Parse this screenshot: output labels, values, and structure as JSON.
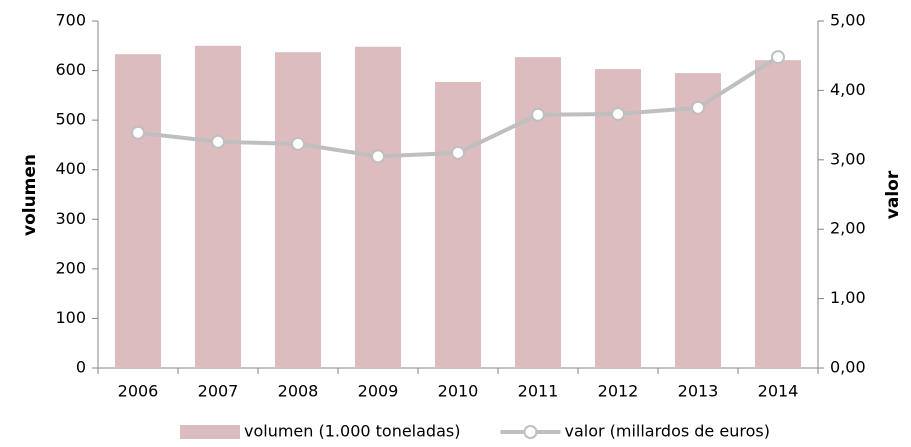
{
  "chart_data": {
    "type": "combo",
    "categories": [
      "2006",
      "2007",
      "2008",
      "2009",
      "2010",
      "2011",
      "2012",
      "2013",
      "2014"
    ],
    "series": [
      {
        "name": "volumen (1.000 toneladas)",
        "type": "bar",
        "color": "#dcbcbf",
        "values": [
          633,
          650,
          637,
          648,
          577,
          627,
          603,
          595,
          621
        ]
      },
      {
        "name": "valor (millardos de euros)",
        "type": "line",
        "axis": "y2",
        "color": "#bfbfbf",
        "values": [
          3.39,
          3.26,
          3.23,
          3.05,
          3.1,
          3.65,
          3.66,
          3.75,
          4.48
        ]
      }
    ],
    "y_label": "volumen",
    "y2_label": "valor",
    "ylim": [
      0,
      700
    ],
    "yticks": [
      0,
      100,
      200,
      300,
      400,
      500,
      600,
      700
    ],
    "y2lim": [
      0,
      5
    ],
    "y2ticks": [
      {
        "value": 0,
        "label": "0,00"
      },
      {
        "value": 1,
        "label": "1,00"
      },
      {
        "value": 2,
        "label": "2,00"
      },
      {
        "value": 3,
        "label": "3,00"
      },
      {
        "value": 4,
        "label": "4,00"
      },
      {
        "value": 5,
        "label": "5,00"
      }
    ],
    "legend": "bottom",
    "grid": false
  }
}
